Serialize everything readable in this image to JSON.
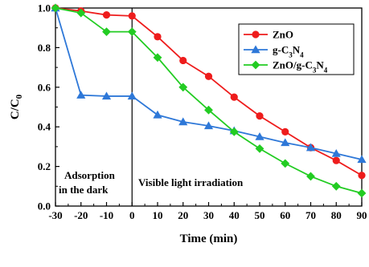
{
  "chart_data": {
    "type": "line",
    "xlabel": "Time (min)",
    "ylabel_main": "C/C",
    "ylabel_sub": "0",
    "x": [
      -30,
      -20,
      -10,
      0,
      10,
      20,
      30,
      40,
      50,
      60,
      70,
      80,
      90
    ],
    "xlim": [
      -30,
      90
    ],
    "ylim": [
      0.0,
      1.0
    ],
    "x_ticks": [
      "-30",
      "-20",
      "-10",
      "0",
      "10",
      "20",
      "30",
      "40",
      "50",
      "60",
      "70",
      "80",
      "90"
    ],
    "y_ticks": [
      "0.0",
      "0.2",
      "0.4",
      "0.6",
      "0.8",
      "1.0"
    ],
    "legend_position": "top-right",
    "series": [
      {
        "name": "ZnO",
        "color": "#ee1c1c",
        "marker": "circle",
        "values": [
          1.0,
          0.985,
          0.965,
          0.96,
          0.855,
          0.735,
          0.655,
          0.55,
          0.455,
          0.375,
          0.295,
          0.23,
          0.155
        ]
      },
      {
        "name_parts": [
          "g-C",
          "3",
          "N",
          "4",
          ""
        ],
        "color": "#2e78d8",
        "marker": "triangle",
        "values": [
          1.0,
          0.56,
          0.555,
          0.555,
          0.46,
          0.425,
          0.405,
          0.38,
          0.35,
          0.32,
          0.295,
          0.265,
          0.235
        ]
      },
      {
        "name_parts": [
          "ZnO/g-C",
          "3",
          "N",
          "4",
          ""
        ],
        "color": "#22cc22",
        "marker": "diamond",
        "values": [
          1.0,
          0.975,
          0.88,
          0.88,
          0.75,
          0.6,
          0.485,
          0.375,
          0.29,
          0.215,
          0.15,
          0.1,
          0.065
        ]
      }
    ],
    "annotations": {
      "dark_line1": "Adsorption",
      "dark_line2": "in the dark",
      "light": "Visible light irradiation"
    }
  }
}
